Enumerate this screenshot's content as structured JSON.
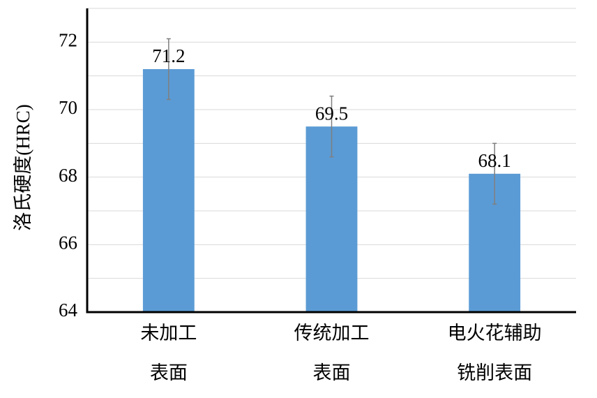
{
  "chart_data": {
    "type": "bar",
    "y_label": "洛氏硬度(HRC)",
    "categories": [
      [
        "未加工",
        "表面"
      ],
      [
        "传统加工",
        "表面"
      ],
      [
        "电火花辅助",
        "铣削表面"
      ]
    ],
    "values": [
      71.2,
      69.5,
      68.1
    ],
    "errors": [
      0.9,
      0.9,
      0.9
    ],
    "color": "#5b9bd5",
    "error_color": "#7f7f7f",
    "ylim": [
      64,
      73
    ],
    "yticks": [
      64,
      66,
      68,
      70,
      72
    ],
    "minor_yticks": [
      65,
      67,
      69,
      71,
      73
    ],
    "grid": true
  }
}
